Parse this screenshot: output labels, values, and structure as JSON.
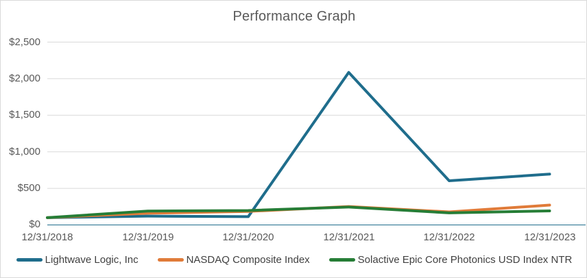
{
  "chart_data": {
    "type": "line",
    "title": "Performance Graph",
    "x_labels": [
      "12/31/2018",
      "12/31/2019",
      "12/31/2020",
      "12/31/2021",
      "12/31/2022",
      "12/31/2023"
    ],
    "y_ticks": [
      0,
      500,
      1000,
      1500,
      2000,
      2500
    ],
    "y_tick_labels": [
      "$0",
      "$500",
      "$1,000",
      "$1,500",
      "$2,000",
      "$2,500"
    ],
    "ylim": [
      0,
      2500
    ],
    "grid": "horizontal",
    "legend_position": "bottom",
    "gridline_color": "#d9d9d9",
    "axis_line_color": "#1f6d8c",
    "title_color": "#595959",
    "series": [
      {
        "name": "Lightwave Logic, Inc",
        "color": "#1f6d8c",
        "values": [
          100,
          120,
          113,
          2086,
          604,
          695
        ]
      },
      {
        "name": "NASDAQ Composite Index",
        "color": "#e07b39",
        "values": [
          100,
          160,
          185,
          252,
          178,
          271
        ]
      },
      {
        "name": "Solactive Epic Core Photonics USD Index NTR",
        "color": "#267d36",
        "values": [
          100,
          190,
          197,
          245,
          165,
          192
        ]
      }
    ]
  }
}
